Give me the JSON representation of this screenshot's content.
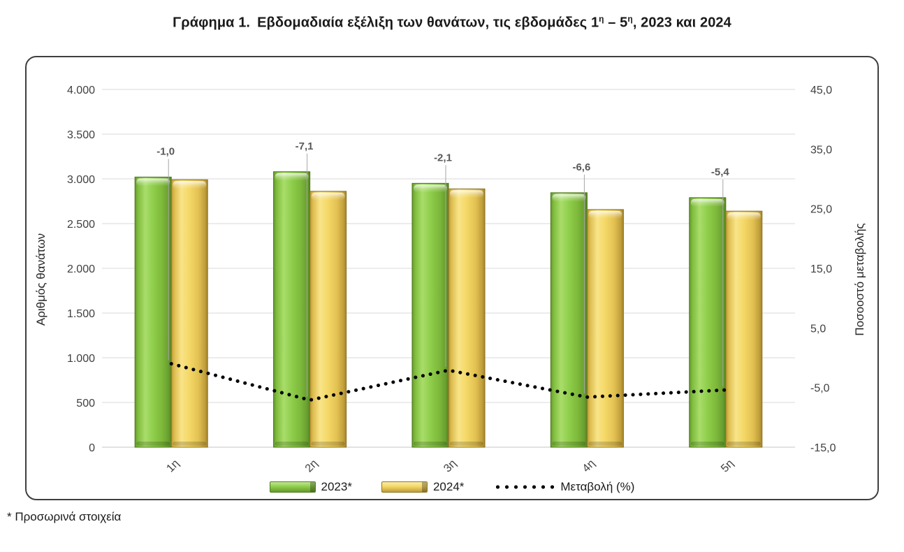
{
  "page": {
    "title": {
      "part1": "Γράφημα 1.",
      "part2": "Εβδομαδιαία εξέλιξη των θανάτων, τις εβδομάδες 1",
      "sup1": "η",
      "part3": " – 5",
      "sup2": "η",
      "part4": ", 2023 και 2024"
    },
    "footnote": "* Προσωρινά στοιχεία"
  },
  "chart_data": {
    "type": "bar",
    "subtype": "dual-axis-bar-line-combo",
    "title": "Γράφημα 1. Εβδομαδιαία εξέλιξη των θανάτων, τις εβδομάδες 1η – 5η, 2023 και 2024",
    "categories": [
      "1η",
      "2η",
      "3η",
      "4η",
      "5η"
    ],
    "series": [
      {
        "name": "2023*",
        "type": "bar",
        "axis": "left",
        "values": [
          3020,
          3080,
          2950,
          2845,
          2790
        ]
      },
      {
        "name": "2024*",
        "type": "bar",
        "axis": "left",
        "values": [
          2990,
          2861,
          2888,
          2657,
          2639
        ]
      },
      {
        "name": "Μεταβολή (%)",
        "type": "line",
        "axis": "right",
        "line_style": "dotted",
        "values": [
          -1.0,
          -7.1,
          -2.1,
          -6.6,
          -5.4
        ],
        "point_labels": [
          "-1,0",
          "-7,1",
          "-2,1",
          "-6,6",
          "-5,4"
        ]
      }
    ],
    "left_axis": {
      "title": "Αριθμός θανάτων",
      "min": 0,
      "max": 4000,
      "step": 500,
      "tick_labels": [
        "4.000",
        "3.500",
        "3.000",
        "2.500",
        "2.000",
        "1.500",
        "1.000",
        "500",
        "0"
      ]
    },
    "right_axis": {
      "title": "Ποσοοστό μεταβολής",
      "min": -15,
      "max": 45,
      "step": 10,
      "tick_labels": [
        "45,0",
        "35,0",
        "25,0",
        "15,0",
        "5,0",
        "-5,0",
        "-15,0"
      ]
    },
    "legend": {
      "position": "bottom",
      "items": [
        "2023*",
        "2024*",
        "Μεταβολή (%)"
      ]
    },
    "grid": true,
    "colors": {
      "bar_2023": "#8CC63E",
      "bar_2023_light": "#B9E287",
      "bar_2023_dark": "#5D8A27",
      "bar_2023_border": "#4F7A1E",
      "bar_2024": "#F2D45C",
      "bar_2024_light": "#FAEBA6",
      "bar_2024_dark": "#B6952F",
      "bar_2024_border": "#8F7526",
      "line": "#000000",
      "gridline": "#D9D9D9",
      "axis_text": "#404040",
      "data_label": "#595959",
      "leader_line": "#A6A6A6",
      "frame_border": "#3F3F3F"
    }
  }
}
